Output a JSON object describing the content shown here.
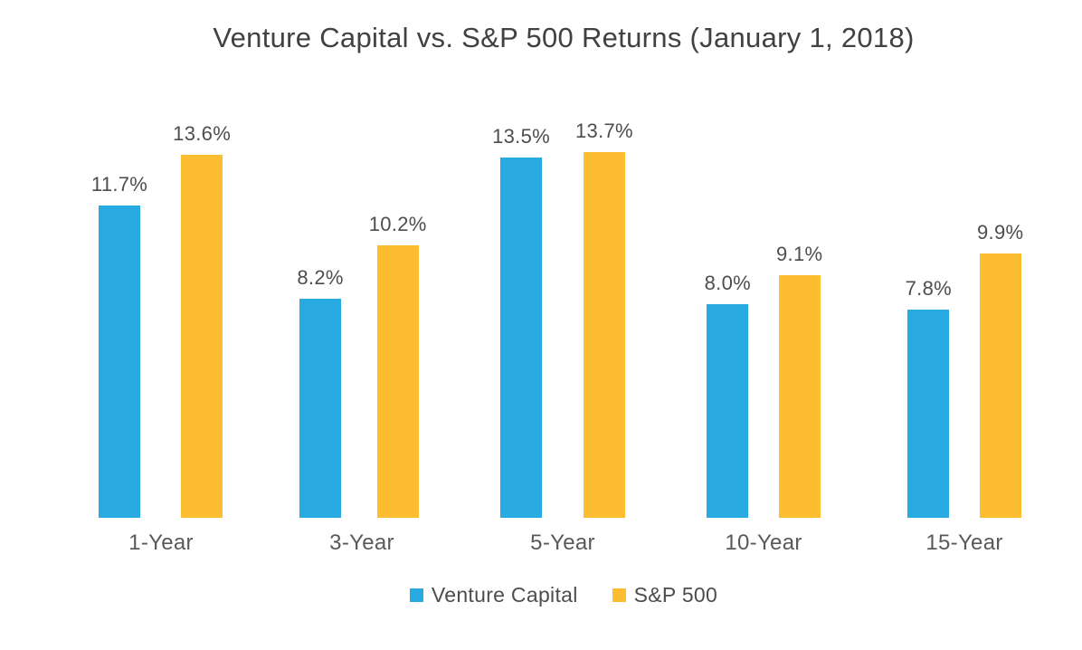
{
  "chart_data": {
    "type": "bar",
    "title": "Venture Capital vs. S&P 500 Returns (January 1, 2018)",
    "categories": [
      "1-Year",
      "3-Year",
      "5-Year",
      "10-Year",
      "15-Year"
    ],
    "series": [
      {
        "name": "Venture Capital",
        "color": "#29ABE2",
        "values": [
          11.7,
          8.2,
          13.5,
          8.0,
          7.8
        ],
        "labels": [
          "11.7%",
          "8.2%",
          "13.5%",
          "8.0%",
          "7.8%"
        ]
      },
      {
        "name": "S&P 500",
        "color": "#FCBE30",
        "values": [
          13.6,
          10.2,
          13.7,
          9.1,
          9.9
        ],
        "labels": [
          "13.6%",
          "10.2%",
          "13.7%",
          "9.1%",
          "9.9%"
        ]
      }
    ],
    "value_suffix": "%",
    "xlabel": "",
    "ylabel": "",
    "ylim": [
      0,
      19.4
    ],
    "grid": false,
    "axes_visible": false,
    "data_labels": true,
    "legend_position": "bottom"
  },
  "colors": {
    "background": "#FFFFFF",
    "title_text": "#414042",
    "data_label_text": "#4D4D4F",
    "axis_label_text": "#58595B"
  }
}
